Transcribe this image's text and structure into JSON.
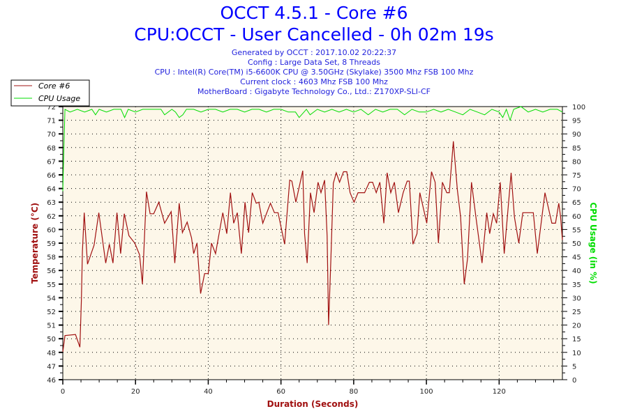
{
  "header": {
    "title": "OCCT 4.5.1 - Core #6",
    "subtitle": "CPU:OCCT - User Cancelled - 0h 02m 19s",
    "info_lines": [
      "Generated by OCCT : 2017.10.02 20:22:37",
      "Config : Large Data Set, 8 Threads",
      "CPU : Intel(R) Core(TM) i5-6600K CPU @ 3.50GHz (Skylake) 3500 Mhz FSB 100 Mhz",
      "Current clock : 4603 Mhz FSB 100 Mhz",
      "MotherBoard : Gigabyte Technology Co., Ltd.: Z170XP-SLI-CF"
    ]
  },
  "chart_data": {
    "type": "line",
    "title": "OCCT 4.5.1 - Core #6",
    "xlabel": "Duration (Seconds)",
    "ylabel": "Temperature (°C)",
    "y2label": "CPU Usage (in %)",
    "xlim": [
      0,
      137.4
    ],
    "ylim": [
      46,
      72
    ],
    "y2lim": [
      0,
      100
    ],
    "x_ticks": [
      0,
      20,
      40,
      60,
      80,
      100,
      120
    ],
    "y_tick_labels": [
      "46",
      "47",
      "48",
      "50",
      "51",
      "52",
      "54",
      "55",
      "56",
      "58",
      "59",
      "60",
      "62",
      "63",
      "64",
      "66",
      "67",
      "68",
      "70",
      "71",
      "72"
    ],
    "y2_ticks": [
      0,
      5,
      10,
      15,
      20,
      25,
      30,
      35,
      40,
      45,
      50,
      55,
      60,
      65,
      70,
      75,
      80,
      85,
      90,
      95,
      100
    ],
    "grid": true,
    "legend_position": "top-left",
    "colors": {
      "temperature": "#a01010",
      "cpu": "#00dd00",
      "plot_bg": "#fdf7e9",
      "title": "#0000ff"
    },
    "series": [
      {
        "name": "Core #6",
        "axis": "left",
        "points": [
          [
            0,
            48.65
          ],
          [
            0.6,
            50.2
          ],
          [
            3.5,
            50.3
          ],
          [
            4.7,
            49.1
          ],
          [
            5.1,
            53.5
          ],
          [
            5.4,
            58.2
          ],
          [
            5.9,
            61.9
          ],
          [
            6.8,
            57.0
          ],
          [
            8.6,
            58.8
          ],
          [
            9.9,
            61.9
          ],
          [
            11.8,
            57.1
          ],
          [
            12.8,
            58.9
          ],
          [
            13.8,
            57.1
          ],
          [
            14.9,
            61.9
          ],
          [
            15.9,
            58.0
          ],
          [
            16.9,
            61.8
          ],
          [
            18.2,
            59.7
          ],
          [
            19.8,
            59.0
          ],
          [
            21.1,
            57.9
          ],
          [
            21.9,
            55.1
          ],
          [
            23.0,
            63.9
          ],
          [
            24.0,
            61.8
          ],
          [
            25.0,
            61.8
          ],
          [
            26.4,
            62.9
          ],
          [
            28.0,
            60.9
          ],
          [
            29.8,
            62.0
          ],
          [
            30.8,
            57.1
          ],
          [
            32.0,
            62.8
          ],
          [
            32.9,
            60.0
          ],
          [
            34.2,
            61.0
          ],
          [
            35.4,
            59.5
          ],
          [
            36.0,
            58.0
          ],
          [
            36.9,
            59.0
          ],
          [
            37.9,
            54.2
          ],
          [
            39.0,
            56.1
          ],
          [
            40.0,
            56.1
          ],
          [
            40.9,
            59.0
          ],
          [
            42.0,
            58.0
          ],
          [
            44.0,
            61.9
          ],
          [
            45.1,
            59.9
          ],
          [
            46.1,
            63.8
          ],
          [
            47.0,
            60.9
          ],
          [
            48.0,
            61.9
          ],
          [
            49.1,
            58.0
          ],
          [
            50.1,
            62.9
          ],
          [
            51.1,
            60.0
          ],
          [
            52.1,
            63.8
          ],
          [
            53.2,
            62.8
          ],
          [
            53.9,
            62.9
          ],
          [
            55.0,
            60.9
          ],
          [
            57.1,
            62.8
          ],
          [
            58.2,
            61.9
          ],
          [
            59.2,
            61.9
          ],
          [
            61.0,
            58.9
          ],
          [
            62.4,
            65.0
          ],
          [
            63.0,
            64.9
          ],
          [
            64.1,
            62.9
          ],
          [
            66.0,
            65.9
          ],
          [
            66.5,
            59.9
          ],
          [
            67.2,
            57.1
          ],
          [
            68.1,
            63.8
          ],
          [
            69.1,
            61.9
          ],
          [
            70.2,
            64.8
          ],
          [
            71.0,
            63.8
          ],
          [
            72.0,
            65.0
          ],
          [
            72.7,
            59.7
          ],
          [
            73.1,
            51.2
          ],
          [
            73.7,
            57.3
          ],
          [
            74.4,
            64.7
          ],
          [
            75.2,
            65.7
          ],
          [
            76.1,
            64.8
          ],
          [
            77.2,
            65.8
          ],
          [
            78.1,
            65.8
          ],
          [
            79.0,
            63.8
          ],
          [
            80.1,
            62.9
          ],
          [
            81.2,
            63.8
          ],
          [
            83.0,
            63.8
          ],
          [
            84.3,
            64.8
          ],
          [
            85.2,
            64.8
          ],
          [
            86.2,
            63.8
          ],
          [
            87.2,
            64.8
          ],
          [
            88.3,
            60.9
          ],
          [
            89.2,
            65.7
          ],
          [
            90.2,
            63.8
          ],
          [
            91.2,
            64.8
          ],
          [
            92.3,
            61.9
          ],
          [
            93.6,
            63.8
          ],
          [
            94.7,
            64.9
          ],
          [
            95.3,
            64.9
          ],
          [
            96.3,
            58.9
          ],
          [
            97.4,
            59.9
          ],
          [
            98.2,
            63.8
          ],
          [
            100.1,
            60.9
          ],
          [
            101.4,
            65.8
          ],
          [
            102.4,
            64.8
          ],
          [
            103.3,
            59.0
          ],
          [
            104.4,
            64.8
          ],
          [
            105.6,
            63.8
          ],
          [
            106.3,
            63.8
          ],
          [
            107.4,
            68.7
          ],
          [
            108.5,
            64.1
          ],
          [
            109.4,
            61.5
          ],
          [
            110.4,
            55.1
          ],
          [
            111.3,
            57.5
          ],
          [
            112.4,
            64.8
          ],
          [
            113.6,
            61.5
          ],
          [
            115.3,
            57.1
          ],
          [
            116.6,
            61.9
          ],
          [
            117.4,
            59.9
          ],
          [
            118.4,
            61.8
          ],
          [
            119.3,
            60.9
          ],
          [
            120.3,
            64.8
          ],
          [
            121.4,
            58.0
          ],
          [
            123.3,
            65.7
          ],
          [
            124.2,
            61.5
          ],
          [
            125.4,
            59.0
          ],
          [
            126.5,
            61.9
          ],
          [
            129.4,
            61.9
          ],
          [
            130.5,
            58.0
          ],
          [
            132.6,
            63.8
          ],
          [
            134.5,
            60.9
          ],
          [
            135.5,
            60.9
          ],
          [
            136.4,
            62.8
          ],
          [
            136.9,
            61.5
          ],
          [
            137.4,
            59.3
          ]
        ]
      },
      {
        "name": "CPU Usage",
        "axis": "right",
        "points": [
          [
            0,
            69
          ],
          [
            0.3,
            85
          ],
          [
            0.6,
            99
          ],
          [
            2,
            98
          ],
          [
            4,
            99
          ],
          [
            6,
            98
          ],
          [
            8,
            99
          ],
          [
            9,
            97
          ],
          [
            10,
            99
          ],
          [
            12,
            98
          ],
          [
            14,
            99
          ],
          [
            16,
            99
          ],
          [
            17,
            96
          ],
          [
            18,
            99
          ],
          [
            20,
            98
          ],
          [
            22,
            99
          ],
          [
            25,
            99
          ],
          [
            27,
            99
          ],
          [
            28,
            97
          ],
          [
            30,
            99
          ],
          [
            31,
            98
          ],
          [
            32,
            96
          ],
          [
            33,
            97
          ],
          [
            34,
            99
          ],
          [
            36,
            99
          ],
          [
            38,
            98
          ],
          [
            40,
            99
          ],
          [
            42,
            99
          ],
          [
            44,
            98
          ],
          [
            46,
            99
          ],
          [
            48,
            99
          ],
          [
            50,
            98
          ],
          [
            52,
            99
          ],
          [
            54,
            99
          ],
          [
            56,
            98
          ],
          [
            58,
            99
          ],
          [
            60,
            99
          ],
          [
            62,
            98
          ],
          [
            64,
            98
          ],
          [
            65,
            96
          ],
          [
            67,
            99
          ],
          [
            68,
            97
          ],
          [
            70,
            99
          ],
          [
            72,
            98
          ],
          [
            74,
            99
          ],
          [
            76,
            98
          ],
          [
            78,
            99
          ],
          [
            80,
            98
          ],
          [
            82,
            99
          ],
          [
            84,
            97
          ],
          [
            86,
            99
          ],
          [
            88,
            98
          ],
          [
            90,
            99
          ],
          [
            92,
            99
          ],
          [
            94,
            97
          ],
          [
            96,
            99
          ],
          [
            98,
            98
          ],
          [
            100,
            98
          ],
          [
            102,
            99
          ],
          [
            104,
            98
          ],
          [
            106,
            99
          ],
          [
            108,
            98
          ],
          [
            110,
            97
          ],
          [
            112,
            99
          ],
          [
            114,
            98
          ],
          [
            116,
            97
          ],
          [
            118,
            99
          ],
          [
            120,
            98
          ],
          [
            121,
            96
          ],
          [
            122,
            99
          ],
          [
            123,
            95
          ],
          [
            124,
            99
          ],
          [
            126,
            100
          ],
          [
            128,
            98
          ],
          [
            130,
            99
          ],
          [
            132,
            98
          ],
          [
            134,
            99
          ],
          [
            136,
            99
          ],
          [
            137.4,
            98
          ]
        ]
      }
    ]
  }
}
